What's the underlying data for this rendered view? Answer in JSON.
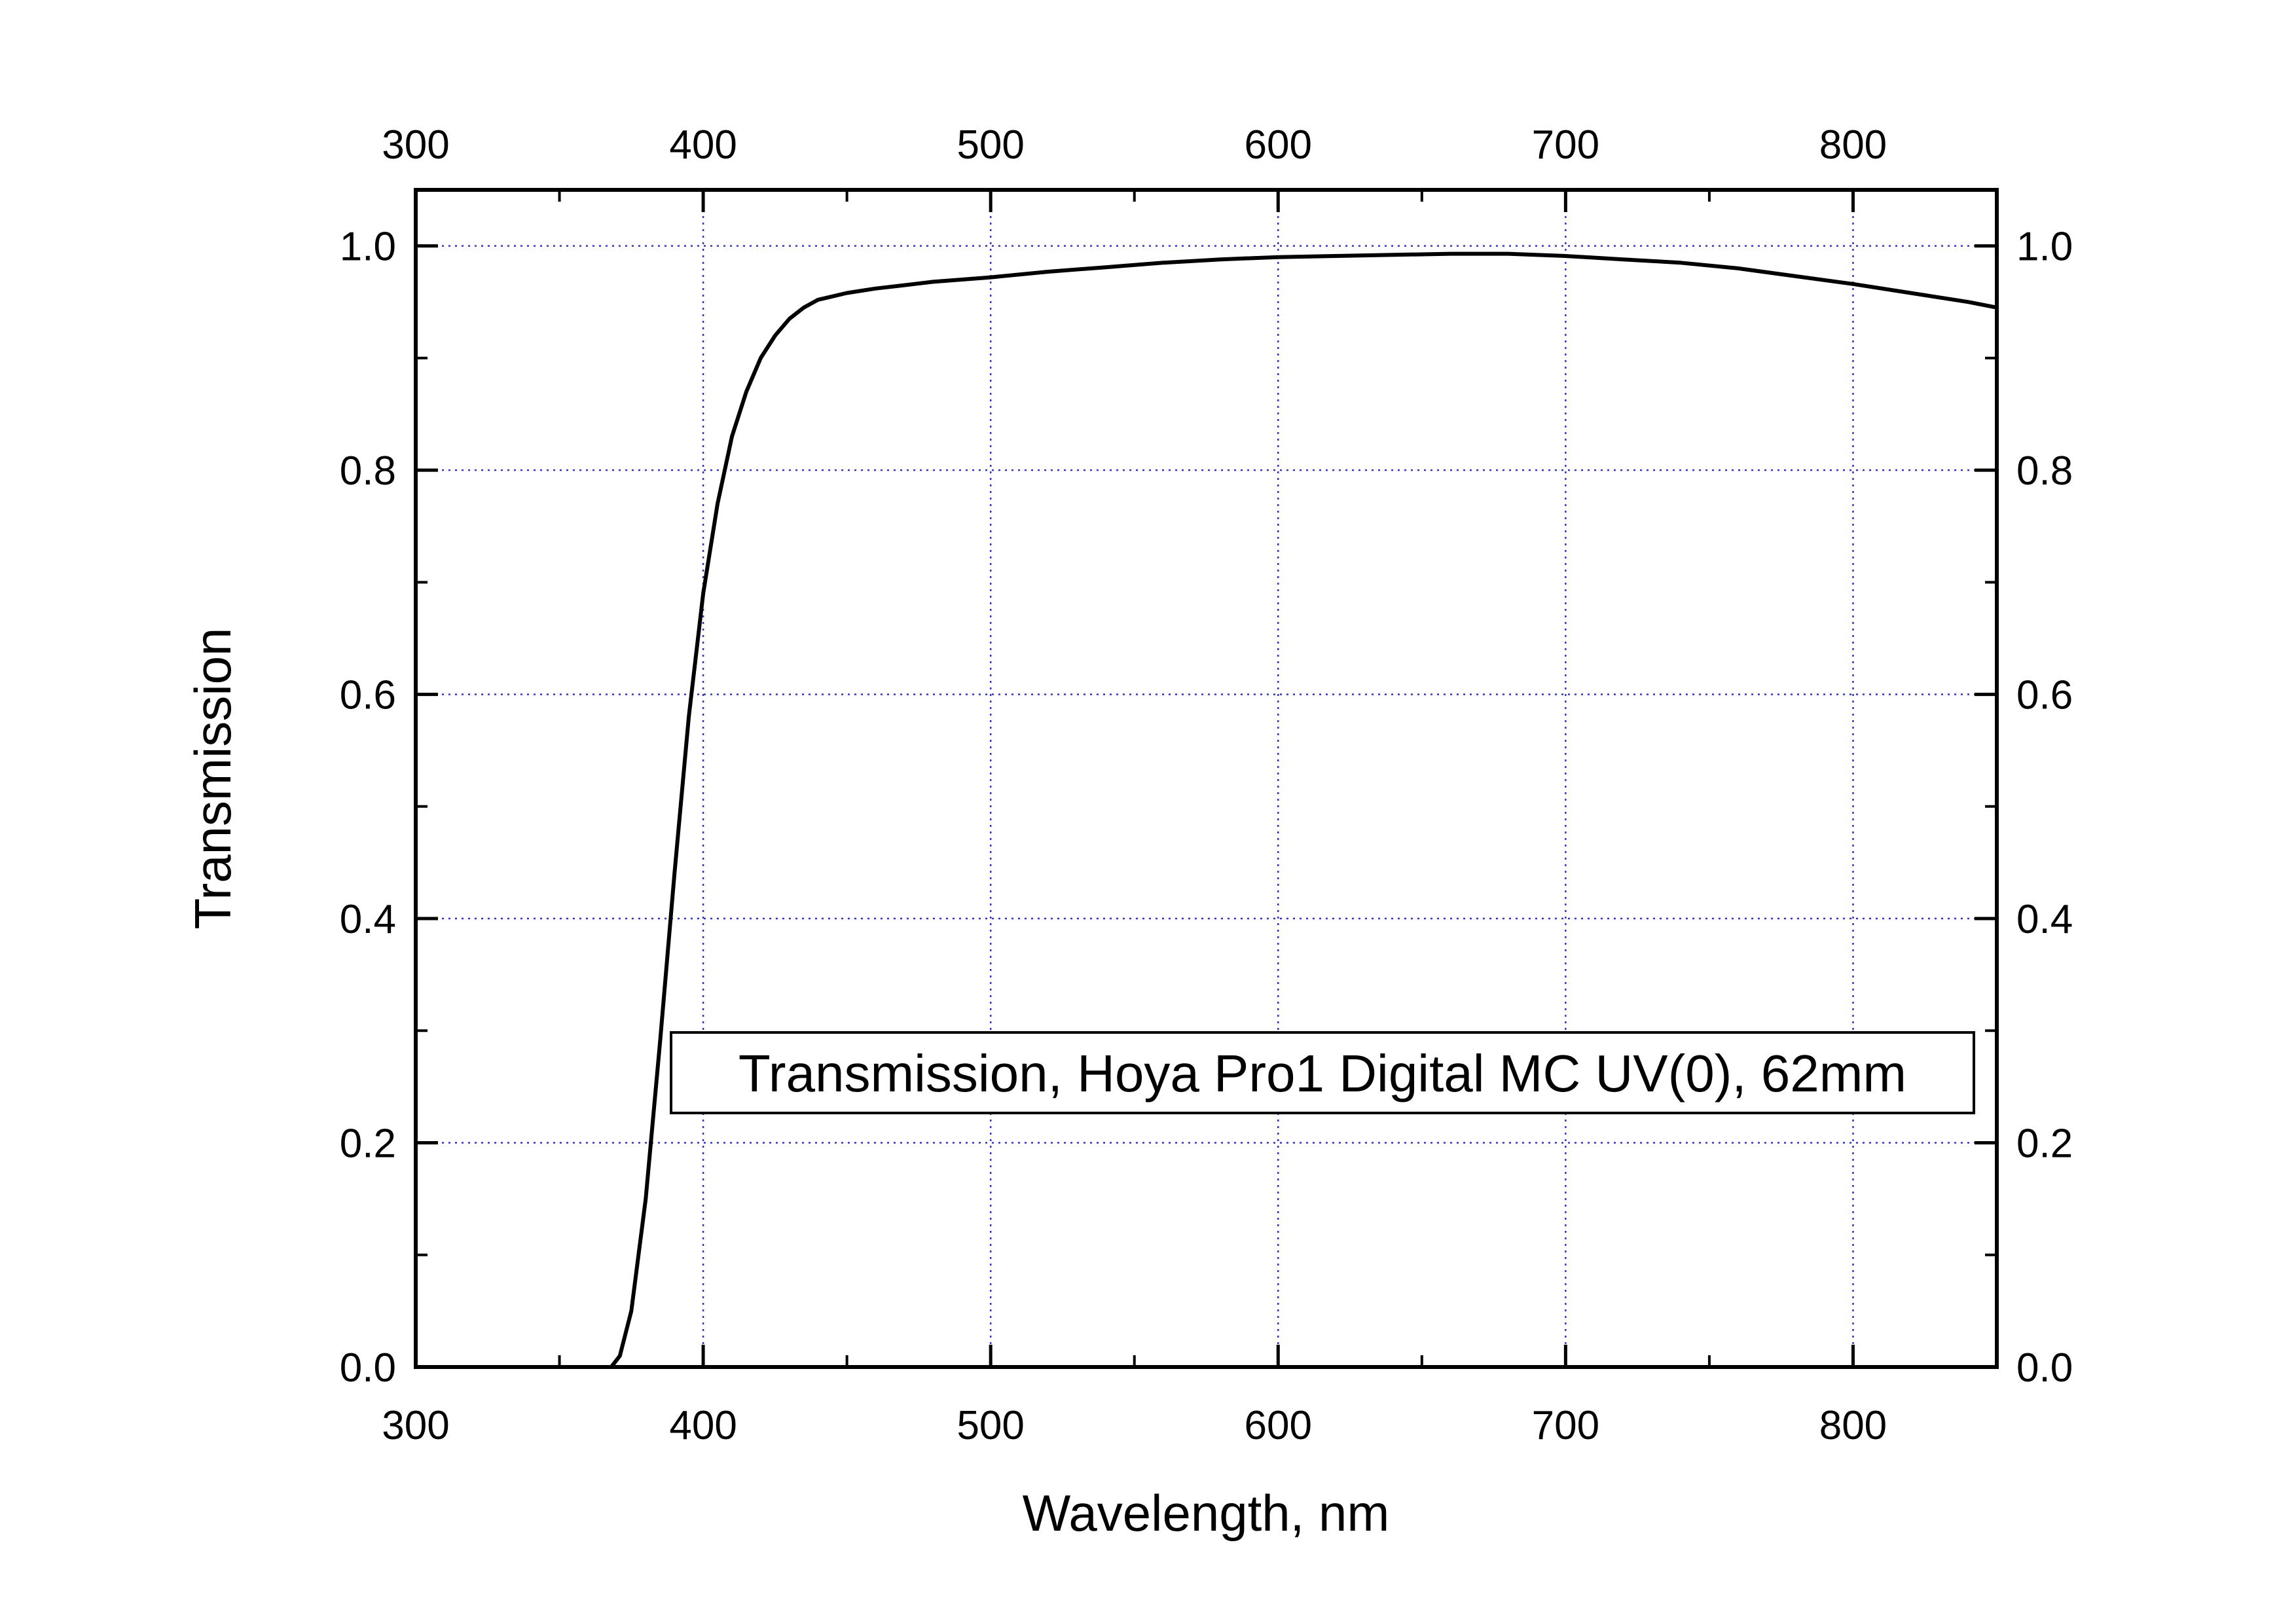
{
  "chart_data": {
    "type": "line",
    "title": "",
    "xlabel": "Wavelength, nm",
    "ylabel": "Transmission",
    "xlim": [
      300,
      850
    ],
    "ylim": [
      0.0,
      1.05
    ],
    "x_ticks": [
      300,
      400,
      500,
      600,
      700,
      800
    ],
    "y_ticks": [
      0.0,
      0.2,
      0.4,
      0.6,
      0.8,
      1.0
    ],
    "x_tick_labels": [
      "300",
      "400",
      "500",
      "600",
      "700",
      "800"
    ],
    "y_tick_labels": [
      "0.0",
      "0.2",
      "0.4",
      "0.6",
      "0.8",
      "1.0"
    ],
    "top_axis_tick_labels": [
      "300",
      "400",
      "500",
      "600",
      "700",
      "800"
    ],
    "right_axis_tick_labels": [
      "0.0",
      "0.2",
      "0.4",
      "0.6",
      "0.8",
      "1.0"
    ],
    "grid": true,
    "legend_text": "Transmission, Hoya Pro1 Digital MC UV(0), 62mm",
    "legend_position": "lower-right",
    "line_color": "#000000",
    "grid_color": "#3333cc",
    "series": [
      {
        "x": [
          300,
          360,
          368,
          371,
          375,
          380,
          385,
          390,
          395,
          400,
          405,
          410,
          415,
          420,
          425,
          430,
          435,
          440,
          445,
          450,
          460,
          470,
          480,
          500,
          520,
          540,
          560,
          580,
          600,
          620,
          640,
          660,
          680,
          700,
          720,
          740,
          760,
          780,
          800,
          820,
          840,
          850
        ],
        "y": [
          0.0,
          0.0,
          0.0,
          0.01,
          0.05,
          0.15,
          0.29,
          0.44,
          0.58,
          0.69,
          0.77,
          0.83,
          0.87,
          0.9,
          0.92,
          0.935,
          0.945,
          0.952,
          0.955,
          0.958,
          0.962,
          0.965,
          0.968,
          0.972,
          0.977,
          0.981,
          0.985,
          0.988,
          0.99,
          0.991,
          0.992,
          0.993,
          0.993,
          0.991,
          0.988,
          0.985,
          0.98,
          0.973,
          0.966,
          0.958,
          0.95,
          0.945
        ]
      }
    ]
  }
}
